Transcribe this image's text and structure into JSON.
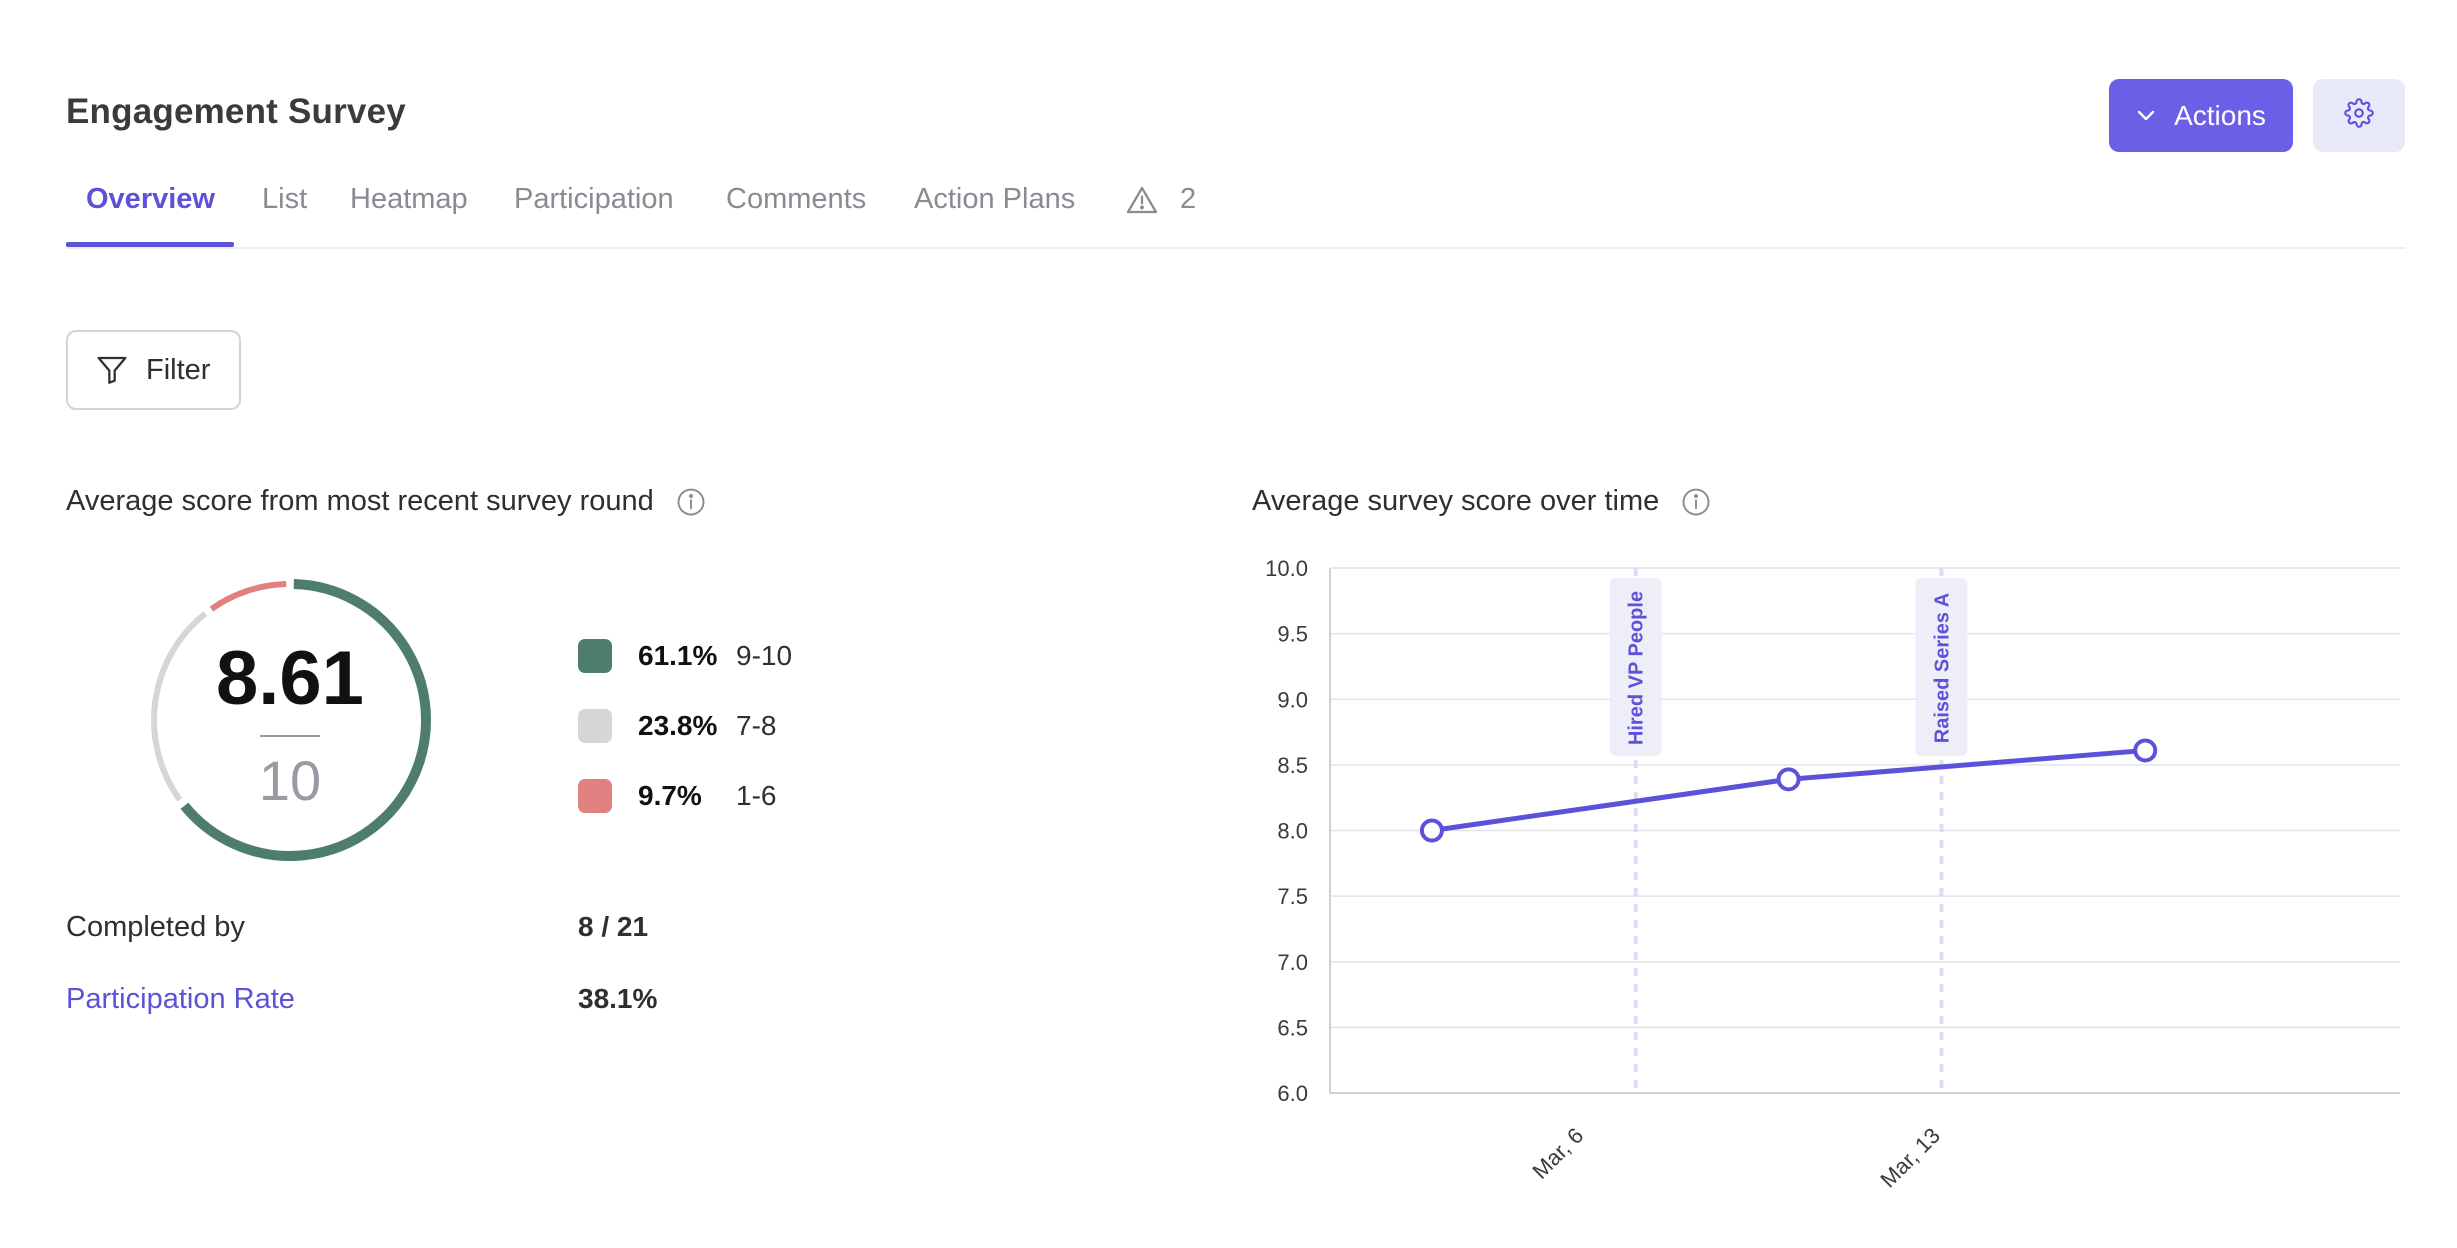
{
  "header": {
    "title": "Engagement Survey",
    "actions_label": "Actions",
    "actions_icon": "chevron-down-icon",
    "settings_icon": "gear-icon"
  },
  "tabs": [
    {
      "label": "Overview",
      "active": true
    },
    {
      "label": "List",
      "active": false
    },
    {
      "label": "Heatmap",
      "active": false
    },
    {
      "label": "Participation",
      "active": false
    },
    {
      "label": "Comments",
      "active": false
    },
    {
      "label": "Action Plans",
      "active": false
    },
    {
      "label": "2",
      "icon": "warning-icon",
      "active": false
    }
  ],
  "filter": {
    "label": "Filter",
    "icon": "filter-icon"
  },
  "score_panel": {
    "title": "Average score from most recent survey round",
    "info_icon": "info-icon",
    "score": "8.61",
    "max": "10",
    "legend": [
      {
        "pct": "61.1%",
        "range": "9-10",
        "color": "#4e7d6b"
      },
      {
        "pct": "23.8%",
        "range": "7-8",
        "color": "#d6d6d6"
      },
      {
        "pct": "9.7%",
        "range": "1-6",
        "color": "#e08080"
      }
    ],
    "completed_label": "Completed by",
    "completed_value": "8 / 21",
    "participation_label": "Participation Rate",
    "participation_value": "38.1%"
  },
  "trend_panel": {
    "title": "Average survey score over time",
    "info_icon": "info-icon"
  },
  "chart_data": {
    "type": "line",
    "title": "Average survey score over time",
    "ylim": [
      6.0,
      10.0
    ],
    "yticks": [
      "6.0",
      "6.5",
      "7.0",
      "7.5",
      "8.0",
      "8.5",
      "9.0",
      "9.5",
      "10.0"
    ],
    "x_tick_labels": [
      "Mar, 6",
      "Mar, 13"
    ],
    "grid": true,
    "line_color": "#5c52d9",
    "points": [
      {
        "x": "Mar 3",
        "y": 8.0
      },
      {
        "x": "Mar 10",
        "y": 8.39
      },
      {
        "x": "Mar 17",
        "y": 8.61
      }
    ],
    "annotations": [
      {
        "label": "Hired VP People",
        "x": "Mar 7"
      },
      {
        "label": "Raised Series A",
        "x": "Mar 13"
      }
    ]
  },
  "colors": {
    "accent": "#5c52d9",
    "primary_button": "#6a5fe6"
  }
}
